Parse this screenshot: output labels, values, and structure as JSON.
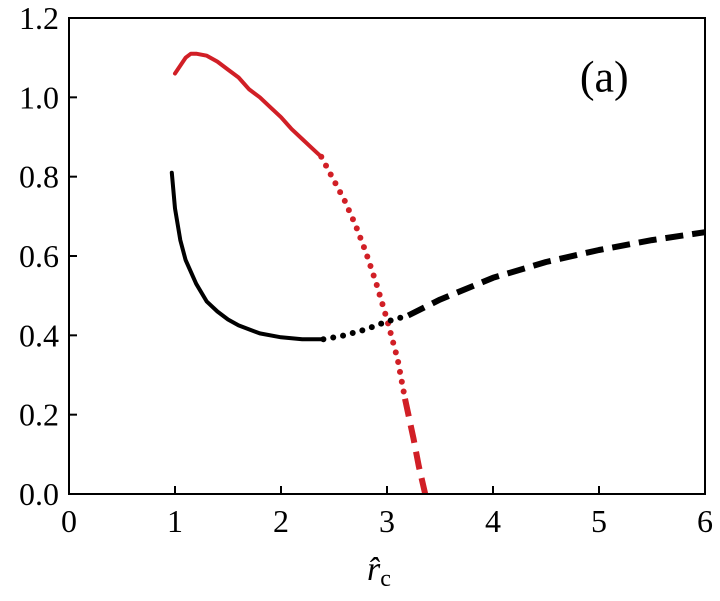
{
  "chart_data": {
    "type": "line",
    "title": "",
    "xlabel": "r̂",
    "xlabel_subscript": "c",
    "ylabel": "",
    "panel_label": "(a)",
    "xlim": [
      0,
      6
    ],
    "ylim": [
      0,
      1.2
    ],
    "x_ticks": [
      "0",
      "1",
      "2",
      "3",
      "4",
      "5",
      "6"
    ],
    "y_ticks": [
      "0.0",
      "0.2",
      "0.4",
      "0.6",
      "0.8",
      "1.0",
      "1.2"
    ],
    "grid": false,
    "legend": "none",
    "series": [
      {
        "color": "#d11f26",
        "segments": [
          {
            "style": "solid",
            "x": [
              1.0,
              1.05,
              1.1,
              1.15,
              1.2,
              1.3,
              1.4,
              1.5,
              1.6,
              1.7,
              1.8,
              1.9,
              2.0,
              2.1,
              2.2,
              2.3,
              2.38
            ],
            "y": [
              1.06,
              1.08,
              1.1,
              1.11,
              1.11,
              1.105,
              1.09,
              1.07,
              1.05,
              1.02,
              1.0,
              0.975,
              0.95,
              0.92,
              0.895,
              0.87,
              0.85
            ]
          },
          {
            "style": "dotted",
            "x": [
              2.38,
              2.5,
              2.6,
              2.7,
              2.8,
              2.9,
              3.0,
              3.1,
              3.17
            ],
            "y": [
              0.85,
              0.79,
              0.74,
              0.68,
              0.61,
              0.53,
              0.44,
              0.34,
              0.24
            ]
          },
          {
            "style": "dashed",
            "x": [
              3.17,
              3.25,
              3.3,
              3.36
            ],
            "y": [
              0.24,
              0.14,
              0.07,
              0.0
            ]
          }
        ]
      },
      {
        "color": "#000000",
        "segments": [
          {
            "style": "solid",
            "x": [
              0.97,
              1.0,
              1.05,
              1.1,
              1.2,
              1.3,
              1.4,
              1.5,
              1.6,
              1.8,
              2.0,
              2.2,
              2.4
            ],
            "y": [
              0.81,
              0.72,
              0.64,
              0.59,
              0.53,
              0.485,
              0.46,
              0.44,
              0.425,
              0.405,
              0.395,
              0.39,
              0.39
            ]
          },
          {
            "style": "dotted",
            "x": [
              2.4,
              2.6,
              2.8,
              3.0,
              3.2
            ],
            "y": [
              0.39,
              0.4,
              0.415,
              0.435,
              0.45
            ]
          },
          {
            "style": "dashed",
            "x": [
              3.2,
              3.5,
              4.0,
              4.5,
              5.0,
              5.5,
              6.0
            ],
            "y": [
              0.45,
              0.49,
              0.545,
              0.585,
              0.615,
              0.64,
              0.66
            ]
          }
        ]
      }
    ]
  }
}
